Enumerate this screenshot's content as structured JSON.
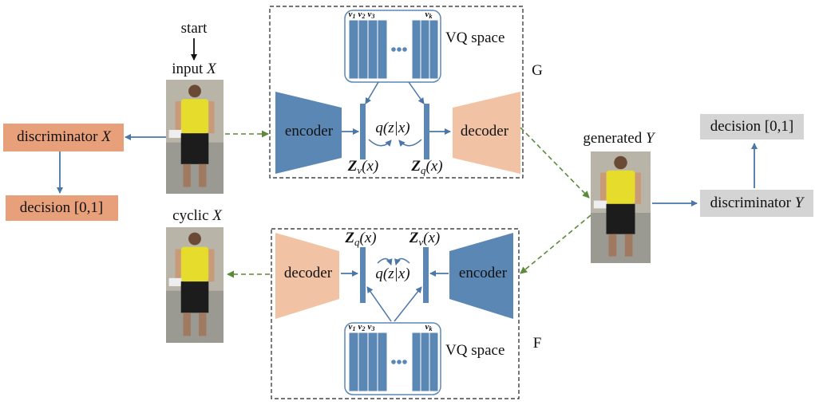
{
  "start": "start",
  "input": {
    "label": "input",
    "var": "X"
  },
  "cyclic": {
    "label": "cyclic",
    "var": "X"
  },
  "generated": {
    "label": "generated",
    "var": "Y"
  },
  "discriminator_x": {
    "label": "discriminator",
    "var": "X"
  },
  "decision_x": "decision [0,1]",
  "discriminator_y": {
    "label": "discriminator",
    "var": "Y"
  },
  "decision_y": "decision [0,1]",
  "generator_g": {
    "name": "G",
    "encoder": "encoder",
    "decoder": "decoder",
    "quantizer": "q(z|x)",
    "zv": {
      "symbol": "Z",
      "sub": "v",
      "arg": "(x)"
    },
    "zq": {
      "symbol": "Z",
      "sub": "q",
      "arg": "(x)"
    },
    "vq_space": {
      "label": "VQ space",
      "codes": [
        {
          "symbol": "v",
          "sub": "1"
        },
        {
          "symbol": "v",
          "sub": "2"
        },
        {
          "symbol": "v",
          "sub": "3"
        },
        {
          "symbol": "v",
          "sub": "k"
        }
      ]
    }
  },
  "generator_f": {
    "name": "F",
    "encoder": "encoder",
    "decoder": "decoder",
    "quantizer": "q(z|x)",
    "zq": {
      "symbol": "Z",
      "sub": "q",
      "arg": "(x)"
    },
    "zv": {
      "symbol": "Z",
      "sub": "v",
      "arg": "(x)"
    },
    "vq_space": {
      "label": "VQ space",
      "codes": [
        {
          "symbol": "v",
          "sub": "1"
        },
        {
          "symbol": "v",
          "sub": "2"
        },
        {
          "symbol": "v",
          "sub": "3"
        },
        {
          "symbol": "v",
          "sub": "k"
        }
      ]
    }
  }
}
